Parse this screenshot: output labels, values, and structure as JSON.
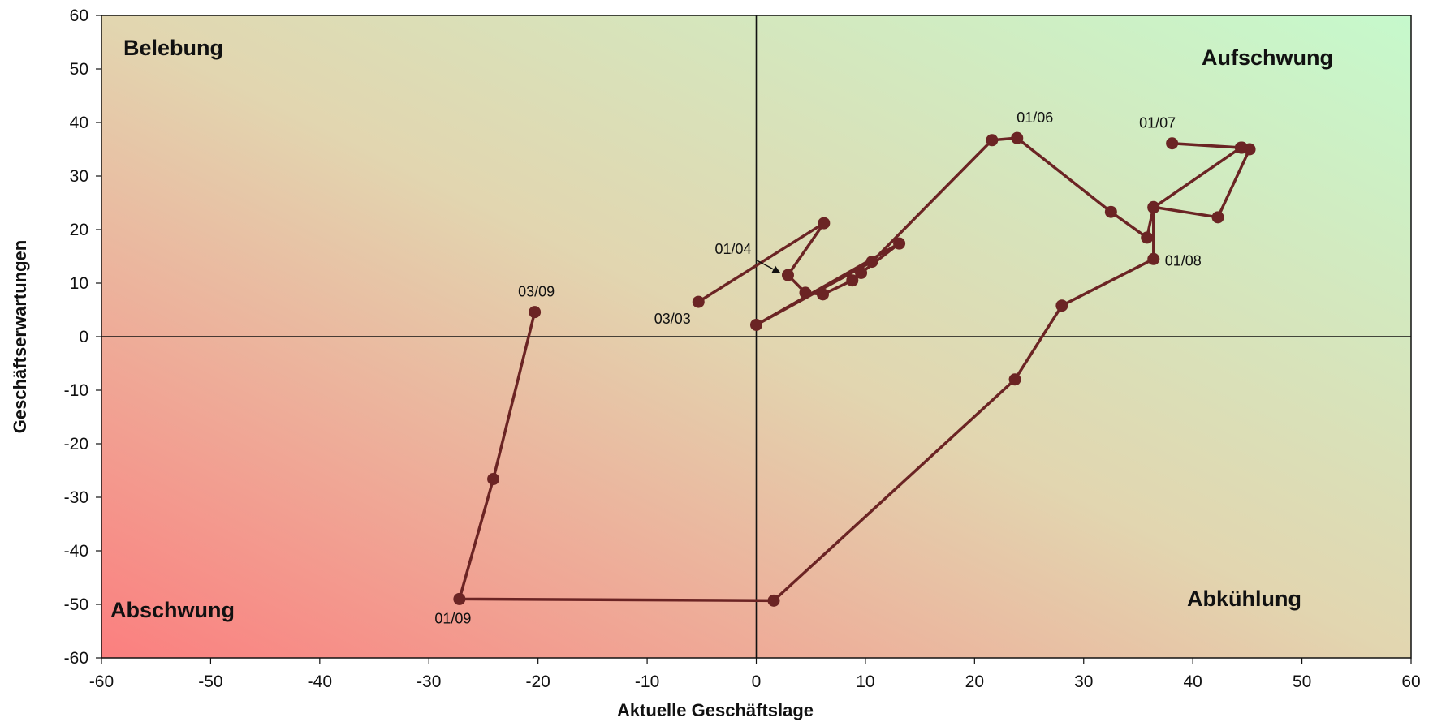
{
  "chart_data": {
    "type": "scatter",
    "title": "",
    "xlabel": "Aktuelle Geschäftslage",
    "ylabel": "Geschäftserwartungen",
    "xlim": [
      -60,
      60
    ],
    "ylim": [
      -60,
      60
    ],
    "xticks": [
      -60,
      -50,
      -40,
      -30,
      -20,
      -10,
      0,
      10,
      20,
      30,
      40,
      50,
      60
    ],
    "yticks": [
      60,
      50,
      40,
      30,
      20,
      10,
      0,
      -10,
      -20,
      -30,
      -40,
      -50,
      -60
    ],
    "grid": false,
    "background": "gradient red (bottom-left) to green (top-right)",
    "line_color": "#6b2424",
    "quadrant_labels": {
      "top_left": "Belebung",
      "top_right": "Aufschwung",
      "bottom_left": "Abschwung",
      "bottom_right": "Abkühlung"
    },
    "series": [
      {
        "x": [
          -5.3,
          6.2,
          2.9,
          4.5,
          6.1,
          8.8,
          9.6,
          13.1,
          0.0,
          10.6,
          21.6,
          23.9,
          32.5,
          35.8,
          36.4,
          42.3,
          45.2,
          44.5,
          38.1,
          44.4,
          36.4,
          36.4,
          28.0,
          23.7,
          1.6,
          -27.2,
          -24.1,
          -20.3
        ],
        "y": [
          6.5,
          21.2,
          11.5,
          8.2,
          7.9,
          10.5,
          11.9,
          17.4,
          2.2,
          14.0,
          36.7,
          37.1,
          23.3,
          18.5,
          24.2,
          22.3,
          35.0,
          35.3,
          36.1,
          35.3,
          24.1,
          14.5,
          5.8,
          -8.0,
          -49.3,
          -49.0,
          -26.6,
          4.6
        ]
      }
    ],
    "annotations": [
      {
        "text": "03/03",
        "x": -5.3,
        "y": 6.5,
        "arrow": false
      },
      {
        "text": "01/04",
        "x": 2.9,
        "y": 11.5,
        "arrow": true
      },
      {
        "text": "01/06",
        "x": 23.9,
        "y": 37.1,
        "arrow": false
      },
      {
        "text": "01/07",
        "x": 38.1,
        "y": 36.1,
        "arrow": false
      },
      {
        "text": "01/08",
        "x": 36.4,
        "y": 14.5,
        "arrow": false
      },
      {
        "text": "01/09",
        "x": -27.2,
        "y": -49.0,
        "arrow": false
      },
      {
        "text": "03/09",
        "x": -20.3,
        "y": 4.6,
        "arrow": false
      }
    ]
  }
}
